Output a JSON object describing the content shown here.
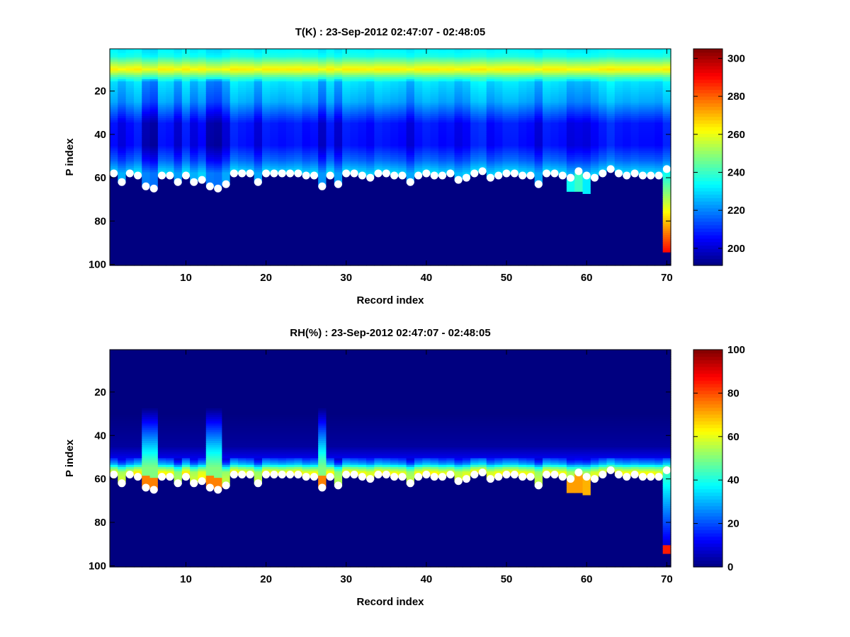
{
  "chart_data": [
    {
      "type": "heatmap",
      "title": "T(K) : 23-Sep-2012 02:47:07 - 02:48:05",
      "xlabel": "Record index",
      "ylabel": "P index",
      "xlim": [
        0.5,
        70.5
      ],
      "ylim": [
        0.5,
        100.5
      ],
      "xticks": [
        10,
        20,
        30,
        40,
        50,
        60,
        70
      ],
      "yticks": [
        20,
        40,
        60,
        80,
        100
      ],
      "clim": [
        191,
        305
      ],
      "colorbar_ticks": [
        200,
        220,
        240,
        260,
        280,
        300
      ],
      "colormap": "jet",
      "profile": [
        [
          1,
          232
        ],
        [
          4,
          236
        ],
        [
          7,
          250
        ],
        [
          10,
          263
        ],
        [
          13,
          245
        ],
        [
          16,
          228
        ],
        [
          25,
          222
        ],
        [
          35,
          205
        ],
        [
          45,
          204
        ],
        [
          52,
          214
        ],
        [
          58,
          228
        ]
      ],
      "fill_value": 191
    },
    {
      "type": "heatmap",
      "title": "RH(%) : 23-Sep-2012 02:47:07 - 02:48:05",
      "xlabel": "Record index",
      "ylabel": "P index",
      "xlim": [
        0.5,
        70.5
      ],
      "ylim": [
        0.5,
        100.5
      ],
      "xticks": [
        10,
        20,
        30,
        40,
        50,
        60,
        70
      ],
      "yticks": [
        20,
        40,
        60,
        80,
        100
      ],
      "clim": [
        0,
        100
      ],
      "colorbar_ticks": [
        0,
        20,
        40,
        60,
        80,
        100
      ],
      "colormap": "jet",
      "profile": [
        [
          1,
          0
        ],
        [
          30,
          0
        ],
        [
          45,
          3
        ],
        [
          50,
          10
        ],
        [
          53,
          25
        ],
        [
          55,
          45
        ],
        [
          57,
          58
        ],
        [
          60,
          62
        ]
      ],
      "fill_value": 0
    }
  ],
  "surface_index": [
    58,
    62,
    58,
    59,
    64,
    65,
    59,
    59,
    62,
    59,
    62,
    61,
    64,
    65,
    63,
    58,
    58,
    58,
    62,
    58,
    58,
    58,
    58,
    58,
    59,
    59,
    64,
    59,
    63,
    58,
    58,
    59,
    60,
    58,
    58,
    59,
    59,
    62,
    59,
    58,
    59,
    59,
    58,
    61,
    60,
    58,
    57,
    60,
    59,
    58,
    58,
    59,
    59,
    63,
    58,
    58,
    59,
    60,
    57,
    59,
    60,
    58,
    56,
    58,
    59,
    58,
    59,
    59,
    59,
    56
  ],
  "record_offsets": [
    2,
    -3,
    1,
    4,
    -8,
    -10,
    3,
    2,
    -5,
    4,
    -3,
    1,
    -9,
    -10,
    -4,
    5,
    3,
    2,
    -4,
    4,
    3,
    2,
    3,
    4,
    1,
    2,
    -6,
    3,
    -5,
    4,
    3,
    2,
    0,
    4,
    3,
    2,
    1,
    -4,
    2,
    4,
    3,
    1,
    2,
    -2,
    0,
    5,
    6,
    0,
    2,
    4,
    4,
    2,
    1,
    -4,
    4,
    3,
    2,
    -3,
    -2,
    -3,
    0,
    3,
    6,
    3,
    2,
    3,
    2,
    2,
    1,
    5
  ],
  "moist_records": [
    5,
    6,
    13,
    14,
    27
  ],
  "extended_records": [
    {
      "record": 58,
      "to": 66,
      "T": 235,
      "RH": 72
    },
    {
      "record": 59,
      "to": 66,
      "T": 240,
      "RH": 72
    },
    {
      "record": 60,
      "to": 67,
      "T": 232,
      "RH": 70
    },
    {
      "record": 70,
      "to": 94,
      "T_range": [
        232,
        290
      ],
      "RH_range": [
        40,
        85
      ]
    }
  ]
}
